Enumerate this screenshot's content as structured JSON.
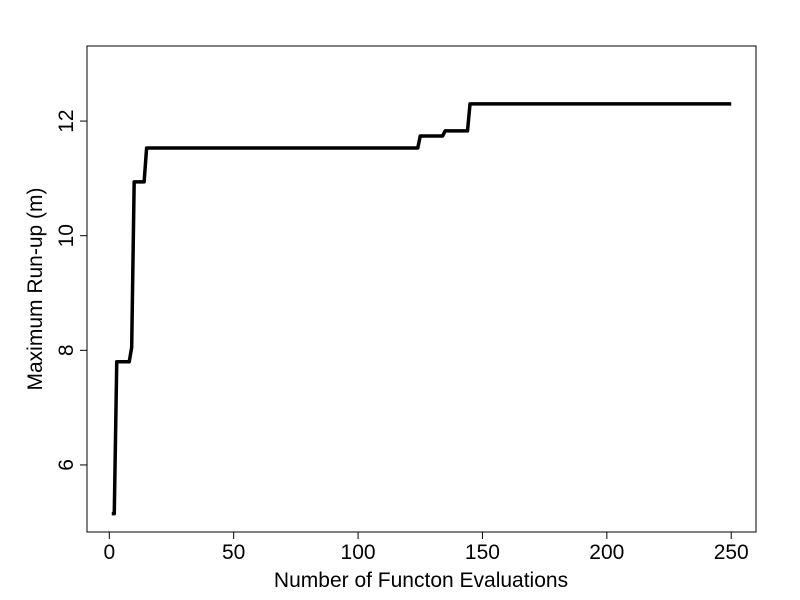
{
  "chart_data": {
    "type": "line",
    "x_label": "Number of Functon Evaluations",
    "y_label": "Maximum Run-up (m)",
    "x": [
      1,
      2,
      3,
      8,
      9,
      10,
      14,
      15,
      124,
      125,
      134,
      135,
      144,
      145,
      250
    ],
    "series": [
      {
        "color": "#000000",
        "values": [
          5.15,
          5.15,
          7.8,
          7.8,
          8.05,
          10.94,
          10.94,
          11.53,
          11.53,
          11.74,
          11.74,
          11.83,
          11.83,
          12.3,
          12.3
        ]
      }
    ],
    "xlim": [
      -8.96,
      259.96
    ],
    "xticks": [
      0,
      50,
      100,
      150,
      200,
      250
    ],
    "ylim": [
      4.83,
      13.31
    ],
    "yticks": [
      6,
      8,
      10,
      12
    ]
  }
}
